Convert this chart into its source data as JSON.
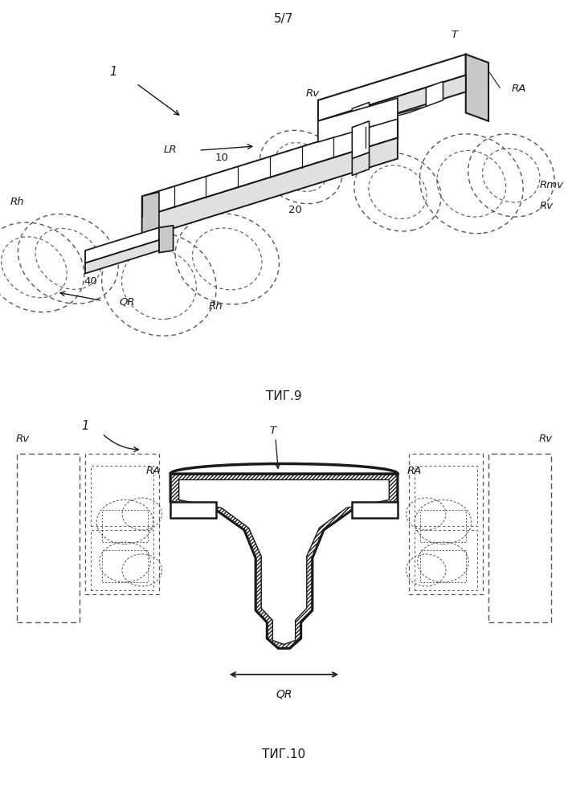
{
  "page_label": "5/7",
  "fig9_label": "ΤИГ.9",
  "fig10_label": "ΤИГ.10",
  "bg_color": "#ffffff",
  "lc": "#1a1a1a",
  "gray1": "#c8c8c8",
  "gray2": "#e0e0e0",
  "dash_color": "#555555"
}
